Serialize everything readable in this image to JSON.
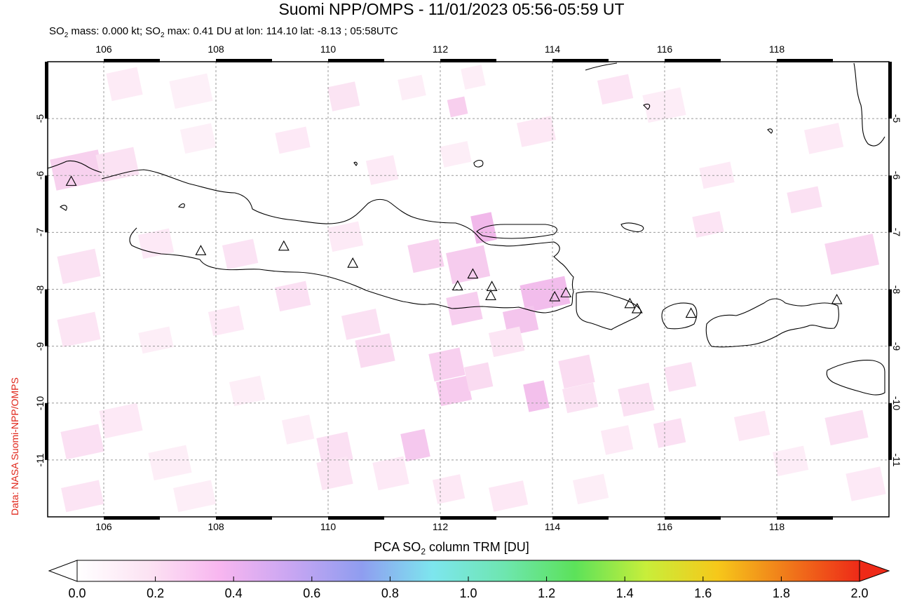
{
  "header": {
    "title": "Suomi NPP/OMPS - 11/01/2023 05:56-05:59 UT",
    "subtitle_prefix": "SO",
    "subtitle_sub1": "2",
    "subtitle_mid": " mass: 0.000 kt; SO",
    "subtitle_sub2": "2",
    "subtitle_suffix": " max: 0.41 DU at lon: 114.10 lat: -8.13 ; 05:58UTC"
  },
  "credit": "Data: NASA Suomi-NPP/OMPS",
  "map": {
    "lon_range": [
      105,
      120
    ],
    "lat_range": [
      -12,
      -4
    ],
    "lon_ticks": [
      "106",
      "108",
      "110",
      "112",
      "114",
      "116",
      "118"
    ],
    "lat_ticks": [
      "-5",
      "-6",
      "-7",
      "-8",
      "-9",
      "-10",
      "-11"
    ],
    "grid": "dashed",
    "volcano_marker": "triangle-icon",
    "volcanoes": [
      {
        "lon": 105.42,
        "lat": -6.1
      },
      {
        "lon": 107.73,
        "lat": -7.32
      },
      {
        "lon": 109.21,
        "lat": -7.24
      },
      {
        "lon": 110.44,
        "lat": -7.54
      },
      {
        "lon": 112.31,
        "lat": -7.94
      },
      {
        "lon": 112.58,
        "lat": -7.73
      },
      {
        "lon": 112.92,
        "lat": -7.95
      },
      {
        "lon": 112.9,
        "lat": -8.11
      },
      {
        "lon": 114.04,
        "lat": -8.13
      },
      {
        "lon": 114.24,
        "lat": -8.06
      },
      {
        "lon": 115.38,
        "lat": -8.25
      },
      {
        "lon": 115.51,
        "lat": -8.34
      },
      {
        "lon": 116.47,
        "lat": -8.42
      },
      {
        "lon": 119.07,
        "lat": -8.18
      }
    ]
  },
  "colorbar": {
    "title_prefix": "PCA SO",
    "title_sub": "2",
    "title_suffix": " column TRM [DU]",
    "labels": [
      "0.0",
      "0.2",
      "0.4",
      "0.6",
      "0.8",
      "1.0",
      "1.2",
      "1.4",
      "1.6",
      "1.8",
      "2.0"
    ],
    "range": [
      0,
      2
    ],
    "colors": [
      "#ffffff",
      "#fce3f3",
      "#f8b6f0",
      "#c9a6f2",
      "#8f9df0",
      "#7de6ee",
      "#6ee6b0",
      "#5ce25a",
      "#c8ee3a",
      "#f6c81a",
      "#f0781a",
      "#ee2a18"
    ]
  }
}
